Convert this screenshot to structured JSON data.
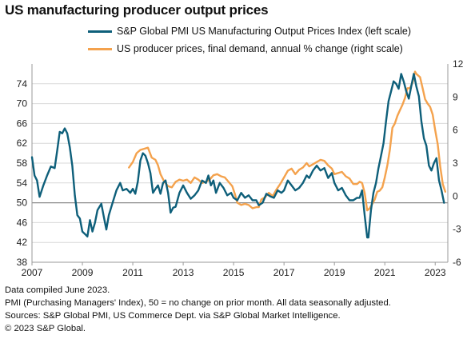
{
  "title": "US manufacturing producer output prices",
  "notes": [
    "Data compiled June 2023.",
    "PMI (Purchasing Managers' Index), 50 = no change on prior month. All data seasonally adjusted.",
    "Sources: S&P Global PMI,  US Commerce Dept. via S&P Global Market Intelligence.",
    "© 2023 S&P Global."
  ],
  "chart_data": {
    "type": "line",
    "title": "US manufacturing producer output prices",
    "x_range": [
      2007.0,
      2023.5
    ],
    "x_ticks": [
      "2007",
      "2009",
      "2011",
      "2013",
      "2015",
      "2017",
      "2019",
      "2021",
      "2023"
    ],
    "left_axis": {
      "ylim": [
        38,
        78
      ],
      "ticks": [
        38,
        42,
        46,
        50,
        54,
        58,
        62,
        66,
        70,
        74
      ]
    },
    "right_axis": {
      "ylim": [
        -6,
        12
      ],
      "ticks": [
        -6,
        -3,
        0,
        3,
        6,
        9,
        12
      ]
    },
    "reference_line": {
      "axis": "left",
      "value": 50
    },
    "legend_position": "top",
    "grid": true,
    "series": [
      {
        "name": "S&P Global PMI US Manufacturing Output Prices Index (left scale)",
        "axis": "left",
        "color": "#0e5f7a",
        "points": [
          [
            2007.0,
            59.2
          ],
          [
            2007.1,
            55.5
          ],
          [
            2007.2,
            54.5
          ],
          [
            2007.3,
            51.2
          ],
          [
            2007.45,
            53.5
          ],
          [
            2007.6,
            55.5
          ],
          [
            2007.75,
            57.3
          ],
          [
            2007.9,
            57.0
          ],
          [
            2008.0,
            60.5
          ],
          [
            2008.1,
            64.3
          ],
          [
            2008.2,
            64.0
          ],
          [
            2008.3,
            65.0
          ],
          [
            2008.4,
            64.0
          ],
          [
            2008.5,
            61.2
          ],
          [
            2008.6,
            57.5
          ],
          [
            2008.7,
            51.5
          ],
          [
            2008.8,
            47.5
          ],
          [
            2008.9,
            46.8
          ],
          [
            2009.0,
            44.2
          ],
          [
            2009.1,
            43.7
          ],
          [
            2009.2,
            43.2
          ],
          [
            2009.3,
            46.5
          ],
          [
            2009.4,
            44.2
          ],
          [
            2009.5,
            46.0
          ],
          [
            2009.6,
            48.5
          ],
          [
            2009.75,
            49.8
          ],
          [
            2009.85,
            47.2
          ],
          [
            2009.95,
            44.6
          ],
          [
            2010.05,
            47.5
          ],
          [
            2010.2,
            50.0
          ],
          [
            2010.35,
            52.5
          ],
          [
            2010.5,
            54.0
          ],
          [
            2010.6,
            52.5
          ],
          [
            2010.75,
            52.8
          ],
          [
            2010.9,
            52.0
          ],
          [
            2011.0,
            52.8
          ],
          [
            2011.1,
            51.8
          ],
          [
            2011.2,
            54.3
          ],
          [
            2011.3,
            58.5
          ],
          [
            2011.4,
            60.0
          ],
          [
            2011.5,
            59.5
          ],
          [
            2011.6,
            58.0
          ],
          [
            2011.7,
            56.0
          ],
          [
            2011.8,
            52.0
          ],
          [
            2011.9,
            52.8
          ],
          [
            2012.0,
            53.5
          ],
          [
            2012.1,
            51.8
          ],
          [
            2012.2,
            54.0
          ],
          [
            2012.3,
            54.5
          ],
          [
            2012.4,
            52.0
          ],
          [
            2012.5,
            48.0
          ],
          [
            2012.6,
            49.0
          ],
          [
            2012.7,
            49.2
          ],
          [
            2012.85,
            52.0
          ],
          [
            2013.0,
            53.5
          ],
          [
            2013.15,
            52.0
          ],
          [
            2013.3,
            50.8
          ],
          [
            2013.45,
            51.5
          ],
          [
            2013.6,
            52.5
          ],
          [
            2013.75,
            54.5
          ],
          [
            2013.9,
            54.0
          ],
          [
            2014.0,
            55.5
          ],
          [
            2014.1,
            53.5
          ],
          [
            2014.2,
            54.5
          ],
          [
            2014.3,
            52.0
          ],
          [
            2014.45,
            54.0
          ],
          [
            2014.6,
            53.0
          ],
          [
            2014.75,
            51.5
          ],
          [
            2014.9,
            52.0
          ],
          [
            2015.0,
            51.0
          ],
          [
            2015.15,
            50.5
          ],
          [
            2015.3,
            52.0
          ],
          [
            2015.45,
            51.0
          ],
          [
            2015.6,
            51.5
          ],
          [
            2015.75,
            50.5
          ],
          [
            2015.9,
            50.5
          ],
          [
            2016.0,
            49.5
          ],
          [
            2016.15,
            50.0
          ],
          [
            2016.3,
            51.8
          ],
          [
            2016.45,
            51.3
          ],
          [
            2016.6,
            51.0
          ],
          [
            2016.75,
            52.5
          ],
          [
            2016.9,
            52.0
          ],
          [
            2017.0,
            52.5
          ],
          [
            2017.15,
            54.5
          ],
          [
            2017.3,
            53.5
          ],
          [
            2017.45,
            52.5
          ],
          [
            2017.6,
            53.0
          ],
          [
            2017.75,
            54.0
          ],
          [
            2017.9,
            55.5
          ],
          [
            2018.0,
            55.0
          ],
          [
            2018.15,
            56.5
          ],
          [
            2018.3,
            57.5
          ],
          [
            2018.45,
            56.5
          ],
          [
            2018.6,
            57.0
          ],
          [
            2018.75,
            55.0
          ],
          [
            2018.9,
            56.0
          ],
          [
            2019.0,
            54.0
          ],
          [
            2019.15,
            52.5
          ],
          [
            2019.3,
            53.0
          ],
          [
            2019.45,
            51.5
          ],
          [
            2019.6,
            50.5
          ],
          [
            2019.75,
            50.5
          ],
          [
            2019.9,
            51.0
          ],
          [
            2020.0,
            51.0
          ],
          [
            2020.1,
            52.5
          ],
          [
            2020.2,
            47.5
          ],
          [
            2020.3,
            43.0
          ],
          [
            2020.35,
            43.0
          ],
          [
            2020.45,
            48.5
          ],
          [
            2020.55,
            52.0
          ],
          [
            2020.65,
            54.0
          ],
          [
            2020.75,
            57.0
          ],
          [
            2020.85,
            59.5
          ],
          [
            2020.95,
            62.0
          ],
          [
            2021.05,
            66.5
          ],
          [
            2021.15,
            70.5
          ],
          [
            2021.25,
            72.5
          ],
          [
            2021.35,
            74.5
          ],
          [
            2021.45,
            74.0
          ],
          [
            2021.55,
            73.0
          ],
          [
            2021.65,
            76.0
          ],
          [
            2021.75,
            74.5
          ],
          [
            2021.85,
            72.5
          ],
          [
            2021.95,
            71.0
          ],
          [
            2022.05,
            73.5
          ],
          [
            2022.15,
            76.0
          ],
          [
            2022.25,
            73.5
          ],
          [
            2022.35,
            71.5
          ],
          [
            2022.45,
            66.5
          ],
          [
            2022.55,
            63.0
          ],
          [
            2022.65,
            61.5
          ],
          [
            2022.75,
            57.5
          ],
          [
            2022.85,
            56.5
          ],
          [
            2022.95,
            58.0
          ],
          [
            2023.05,
            59.0
          ],
          [
            2023.15,
            54.5
          ],
          [
            2023.25,
            52.5
          ],
          [
            2023.35,
            50.0
          ]
        ]
      },
      {
        "name": "US producer prices, final demand, annual % change (right scale)",
        "axis": "right",
        "color": "#f4a24d",
        "points": [
          [
            2010.85,
            2.6
          ],
          [
            2011.0,
            3.1
          ],
          [
            2011.15,
            3.9
          ],
          [
            2011.3,
            4.2
          ],
          [
            2011.45,
            4.3
          ],
          [
            2011.6,
            4.4
          ],
          [
            2011.75,
            3.5
          ],
          [
            2011.9,
            3.3
          ],
          [
            2012.0,
            2.8
          ],
          [
            2012.1,
            2.0
          ],
          [
            2012.25,
            1.3
          ],
          [
            2012.4,
            0.9
          ],
          [
            2012.55,
            0.8
          ],
          [
            2012.7,
            1.3
          ],
          [
            2012.85,
            1.5
          ],
          [
            2013.0,
            1.4
          ],
          [
            2013.15,
            1.5
          ],
          [
            2013.3,
            1.2
          ],
          [
            2013.45,
            1.7
          ],
          [
            2013.6,
            1.5
          ],
          [
            2013.75,
            1.2
          ],
          [
            2013.9,
            1.3
          ],
          [
            2014.05,
            1.5
          ],
          [
            2014.2,
            1.9
          ],
          [
            2014.35,
            2.0
          ],
          [
            2014.5,
            1.8
          ],
          [
            2014.65,
            1.7
          ],
          [
            2014.8,
            1.3
          ],
          [
            2014.95,
            0.9
          ],
          [
            2015.05,
            0.2
          ],
          [
            2015.15,
            -0.6
          ],
          [
            2015.3,
            -0.8
          ],
          [
            2015.45,
            -0.7
          ],
          [
            2015.6,
            -0.8
          ],
          [
            2015.75,
            -1.1
          ],
          [
            2015.9,
            -1.0
          ],
          [
            2016.0,
            -1.0
          ],
          [
            2016.1,
            -0.3
          ],
          [
            2016.25,
            -0.1
          ],
          [
            2016.4,
            0.3
          ],
          [
            2016.55,
            0.0
          ],
          [
            2016.7,
            0.6
          ],
          [
            2016.85,
            1.1
          ],
          [
            2017.0,
            1.7
          ],
          [
            2017.15,
            2.3
          ],
          [
            2017.3,
            2.5
          ],
          [
            2017.45,
            2.0
          ],
          [
            2017.6,
            2.4
          ],
          [
            2017.75,
            2.6
          ],
          [
            2017.9,
            3.0
          ],
          [
            2018.0,
            2.7
          ],
          [
            2018.15,
            2.9
          ],
          [
            2018.3,
            3.1
          ],
          [
            2018.45,
            3.3
          ],
          [
            2018.6,
            3.2
          ],
          [
            2018.75,
            2.8
          ],
          [
            2018.9,
            2.5
          ],
          [
            2019.0,
            2.0
          ],
          [
            2019.15,
            2.1
          ],
          [
            2019.3,
            2.2
          ],
          [
            2019.45,
            1.8
          ],
          [
            2019.6,
            1.6
          ],
          [
            2019.75,
            1.1
          ],
          [
            2019.9,
            1.1
          ],
          [
            2020.0,
            1.3
          ],
          [
            2020.1,
            1.2
          ],
          [
            2020.2,
            0.3
          ],
          [
            2020.3,
            -1.3
          ],
          [
            2020.4,
            -1.1
          ],
          [
            2020.5,
            -0.7
          ],
          [
            2020.6,
            -0.3
          ],
          [
            2020.7,
            0.4
          ],
          [
            2020.8,
            0.5
          ],
          [
            2020.9,
            0.8
          ],
          [
            2021.0,
            1.7
          ],
          [
            2021.1,
            2.8
          ],
          [
            2021.2,
            4.2
          ],
          [
            2021.3,
            6.2
          ],
          [
            2021.4,
            6.6
          ],
          [
            2021.5,
            7.3
          ],
          [
            2021.6,
            7.8
          ],
          [
            2021.7,
            8.3
          ],
          [
            2021.8,
            8.9
          ],
          [
            2021.9,
            9.8
          ],
          [
            2022.0,
            9.8
          ],
          [
            2022.1,
            10.3
          ],
          [
            2022.2,
            11.3
          ],
          [
            2022.25,
            11.1
          ],
          [
            2022.3,
            11.0
          ],
          [
            2022.4,
            10.8
          ],
          [
            2022.5,
            9.8
          ],
          [
            2022.6,
            8.8
          ],
          [
            2022.7,
            8.4
          ],
          [
            2022.8,
            8.1
          ],
          [
            2022.9,
            7.4
          ],
          [
            2023.0,
            6.0
          ],
          [
            2023.1,
            4.7
          ],
          [
            2023.2,
            2.7
          ],
          [
            2023.3,
            1.1
          ],
          [
            2023.4,
            0.4
          ]
        ]
      }
    ]
  }
}
